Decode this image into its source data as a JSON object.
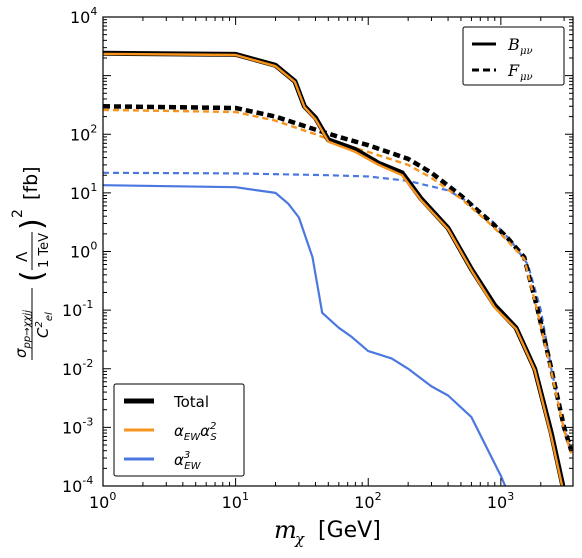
{
  "chart_data": {
    "type": "line",
    "xlabel": "m_χ [GeV]",
    "xlabel_parts": {
      "symbol": "m",
      "sub": "χ",
      "unit": "[GeV]"
    },
    "ylabel_unit": "[fb]",
    "x_scale": "log",
    "y_scale": "log",
    "xlim": [
      1,
      3500
    ],
    "ylim": [
      0.0001,
      10000
    ],
    "grid": false,
    "x_ticks": [
      {
        "base": "10",
        "exp": "0"
      },
      {
        "base": "10",
        "exp": "1"
      },
      {
        "base": "10",
        "exp": "2"
      },
      {
        "base": "10",
        "exp": "3"
      }
    ],
    "y_ticks": [
      {
        "base": "10",
        "exp": "4"
      },
      {
        "base": "10",
        "exp": "2"
      },
      {
        "base": "10",
        "exp": "1"
      },
      {
        "base": "10",
        "exp": "0"
      },
      {
        "base": "10",
        "exp": "-1"
      },
      {
        "base": "10",
        "exp": "-2"
      },
      {
        "base": "10",
        "exp": "-3"
      },
      {
        "base": "10",
        "exp": "-4"
      }
    ],
    "legend_operators": {
      "placement": "top-right",
      "entries": [
        {
          "label": "B_μν",
          "letter": "B",
          "sub": "μν",
          "style": "solid"
        },
        {
          "label": "F_μν",
          "letter": "F",
          "sub": "μν",
          "style": "dashed"
        }
      ]
    },
    "legend_orders": {
      "placement": "bottom-left",
      "entries": [
        {
          "label": "Total",
          "color": "#000000"
        },
        {
          "label": "α_EW α_S^2",
          "color": "#f7941d"
        },
        {
          "label": "α_EW^3",
          "color": "#4a78e0"
        }
      ]
    },
    "series": [
      {
        "key": "B_total",
        "operator": "B_μν",
        "component": "Total",
        "color": "#000000",
        "style": "solid",
        "x": [
          1,
          10,
          20,
          28,
          33,
          40,
          50,
          80,
          120,
          180,
          250,
          400,
          600,
          900,
          1300,
          1800,
          2400,
          3000
        ],
        "y": [
          2400,
          2300,
          1500,
          800,
          300,
          190,
          80,
          55,
          32,
          22,
          8,
          2.5,
          0.5,
          0.12,
          0.05,
          0.01,
          0.0008,
          8e-05
        ]
      },
      {
        "key": "B_ew_s2",
        "operator": "B_μν",
        "component": "α_EW α_S^2",
        "color": "#f7941d",
        "style": "solid",
        "x": [
          1,
          10,
          20,
          28,
          33,
          40,
          50,
          80,
          120,
          180,
          250,
          400,
          600,
          900,
          1300,
          1800,
          2400,
          3000
        ],
        "y": [
          2350,
          2250,
          1450,
          780,
          290,
          180,
          75,
          50,
          30,
          20,
          7.5,
          2.4,
          0.48,
          0.11,
          0.048,
          0.0095,
          0.0007,
          7e-05
        ]
      },
      {
        "key": "B_ew3",
        "operator": "B_μν",
        "component": "α_EW^3",
        "color": "#4a78e0",
        "style": "solid",
        "x": [
          1,
          10,
          20,
          25,
          30,
          38,
          45,
          60,
          75,
          100,
          150,
          200,
          300,
          400,
          600,
          1000,
          1100
        ],
        "y": [
          13.5,
          12.5,
          10,
          6.5,
          3.8,
          0.8,
          0.09,
          0.05,
          0.035,
          0.02,
          0.015,
          0.01,
          0.005,
          0.0035,
          0.0015,
          0.00015,
          9e-05
        ]
      },
      {
        "key": "F_total",
        "operator": "F_μν",
        "component": "Total",
        "color": "#000000",
        "style": "dashed",
        "x": [
          1,
          10,
          20,
          40,
          60,
          100,
          200,
          300,
          500,
          800,
          1100,
          1500,
          1900,
          2400,
          3000,
          3400
        ],
        "y": [
          300,
          280,
          200,
          120,
          90,
          65,
          38,
          22,
          9,
          3.5,
          1.8,
          0.8,
          0.1,
          0.01,
          0.001,
          0.0004
        ]
      },
      {
        "key": "F_ew_s2",
        "operator": "F_μν",
        "component": "α_EW α_S^2",
        "color": "#f7941d",
        "style": "dashed",
        "x": [
          1,
          10,
          20,
          40,
          60,
          100,
          200,
          300,
          500,
          800,
          1100,
          1500,
          1900,
          2400,
          3000,
          3400
        ],
        "y": [
          260,
          240,
          170,
          100,
          70,
          50,
          30,
          18,
          8,
          3.2,
          1.6,
          0.75,
          0.09,
          0.009,
          0.0009,
          0.00036
        ]
      },
      {
        "key": "F_ew3",
        "operator": "F_μν",
        "component": "α_EW^3",
        "color": "#4a78e0",
        "style": "dashed",
        "x": [
          1,
          10,
          50,
          100,
          200,
          400,
          600,
          900,
          1200,
          1600,
          2000,
          2400,
          3000,
          3400
        ],
        "y": [
          22,
          21.5,
          20,
          19,
          16,
          11,
          6.5,
          3,
          1.5,
          0.6,
          0.1,
          0.01,
          0.001,
          0.0004
        ]
      }
    ]
  }
}
